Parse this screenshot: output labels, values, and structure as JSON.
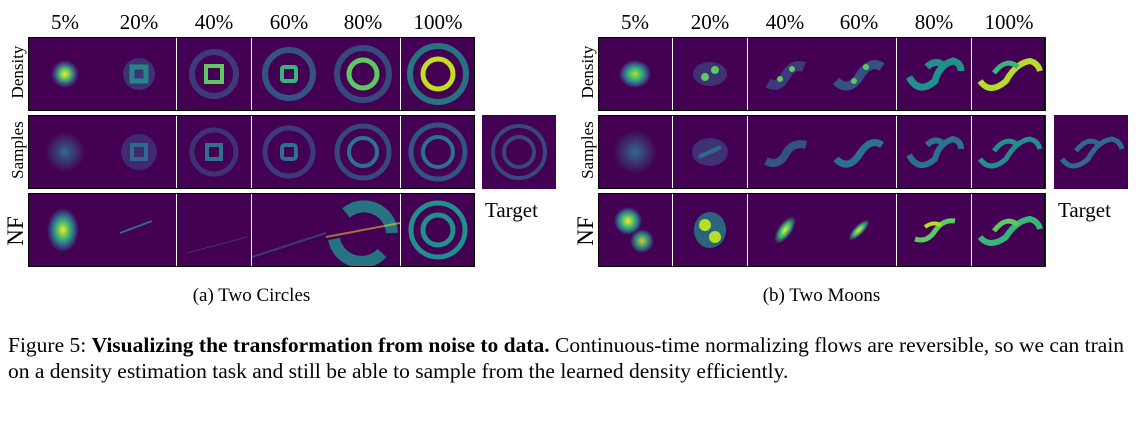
{
  "columns": [
    "5%",
    "20%",
    "40%",
    "60%",
    "80%",
    "100%"
  ],
  "row_labels": {
    "density": "Density",
    "samples": "Samples",
    "nf": "NF"
  },
  "target_label": "Target",
  "panels": [
    {
      "id": "circles",
      "caption": "(a) Two Circles"
    },
    {
      "id": "moons",
      "caption": "(b) Two Moons"
    }
  ],
  "figure": {
    "label": "Figure 5:",
    "title": "Visualizing the transformation from noise to data.",
    "text": "Continuous-time normalizing flows are reversible, so we can train on a density estimation task and still be able to sample from the learned density efficiently."
  },
  "colors": {
    "bg": "#440154",
    "mid": "#21908c",
    "high": "#fde725"
  }
}
